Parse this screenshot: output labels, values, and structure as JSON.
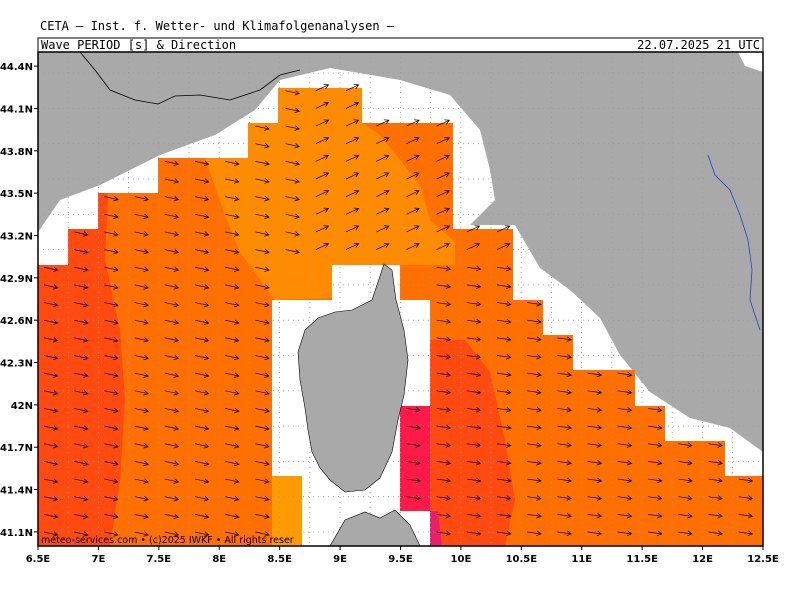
{
  "header": {
    "institute": "CETA — Inst. f. Wetter- und Klimafolgenanalysen —",
    "title": "Wave_PERIOD_[s]_&_Direction",
    "valid_time": "22.07.2025 21 UTC"
  },
  "footer": "meteo-services.com • (c)2025 IWKF • All rights reser",
  "map": {
    "xlim": [
      6.5,
      12.5
    ],
    "ylim": [
      41.0,
      44.5
    ],
    "xticks": [
      {
        "value": 6.5,
        "label": "6.5E"
      },
      {
        "value": 7,
        "label": "7E"
      },
      {
        "value": 7.5,
        "label": "7.5E"
      },
      {
        "value": 8,
        "label": "8E"
      },
      {
        "value": 8.5,
        "label": "8.5E"
      },
      {
        "value": 9,
        "label": "9E"
      },
      {
        "value": 9.5,
        "label": "9.5E"
      },
      {
        "value": 10,
        "label": "10E"
      },
      {
        "value": 10.5,
        "label": "10.5E"
      },
      {
        "value": 11,
        "label": "11E"
      },
      {
        "value": 11.5,
        "label": "11.5E"
      },
      {
        "value": 12,
        "label": "12E"
      },
      {
        "value": 12.5,
        "label": "12.5E"
      }
    ],
    "yticks": [
      {
        "value": 41.1,
        "label": "41.1N"
      },
      {
        "value": 41.4,
        "label": "41.4N"
      },
      {
        "value": 41.7,
        "label": "41.7N"
      },
      {
        "value": 42,
        "label": "42N"
      },
      {
        "value": 42.3,
        "label": "42.3N"
      },
      {
        "value": 42.6,
        "label": "42.6N"
      },
      {
        "value": 42.9,
        "label": "42.9N"
      },
      {
        "value": 43.2,
        "label": "43.2N"
      },
      {
        "value": 43.5,
        "label": "43.5N"
      },
      {
        "value": 43.8,
        "label": "43.8N"
      },
      {
        "value": 44.1,
        "label": "44.1N"
      },
      {
        "value": 44.4,
        "label": "44.4N"
      }
    ]
  }
}
